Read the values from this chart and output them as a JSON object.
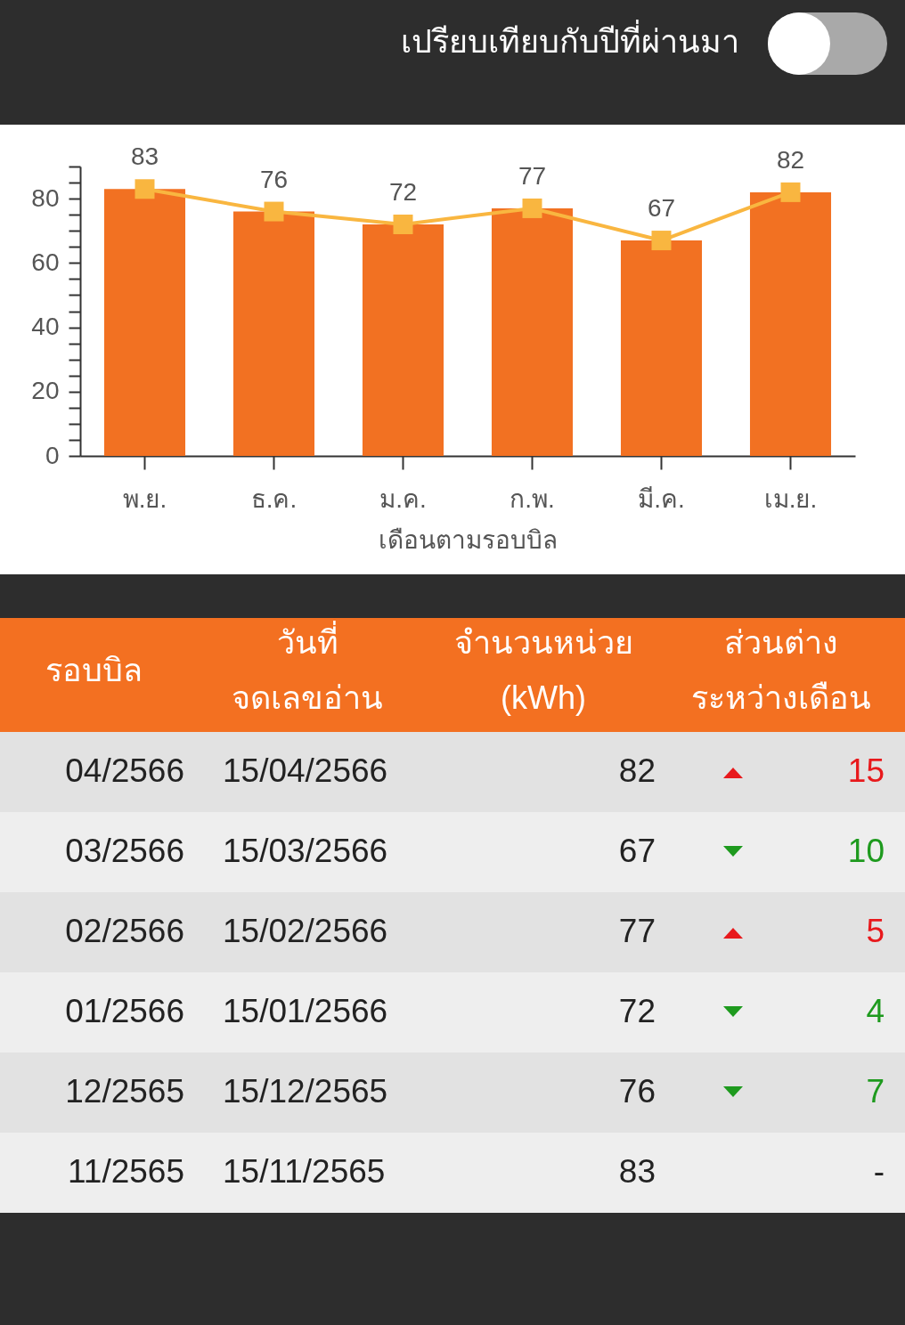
{
  "chart_data": [
    {
      "type": "bar",
      "annotations": [
        "เปรียบเทียบกับปีที่ผ่านมา"
      ],
      "xlabel": "เดือนตามรอบบิล",
      "categories": [
        "พ.ย.",
        "ธ.ค.",
        "ม.ค.",
        "ก.พ.",
        "มี.ค.",
        "เม.ย."
      ],
      "series": [
        {
          "type": "bar",
          "color": "#f27122",
          "values": [
            83,
            76,
            72,
            77,
            67,
            82
          ]
        },
        {
          "type": "line",
          "color": "#f9b640",
          "values": [
            83,
            76,
            72,
            77,
            67,
            82
          ],
          "value_labels": [
            "83",
            "76",
            "72",
            "77",
            "67",
            "82"
          ]
        }
      ],
      "ylim": [
        0,
        90
      ],
      "yticks": [
        0,
        {
          "value": 5,
          "label": null
        },
        {
          "value": 10,
          "label": null
        },
        {
          "value": 15,
          "label": null
        },
        20,
        {
          "value": 25,
          "label": null
        },
        {
          "value": 30,
          "label": null
        },
        {
          "value": 35,
          "label": null
        },
        40,
        {
          "value": 45,
          "label": null
        },
        {
          "value": 50,
          "label": null
        },
        {
          "value": 55,
          "label": null
        },
        60,
        {
          "value": 65,
          "label": null
        },
        {
          "value": 70,
          "label": null
        },
        {
          "value": 75,
          "label": null
        },
        80,
        {
          "value": 85,
          "label": null
        },
        {
          "value": 90,
          "label": null
        }
      ],
      "grid": false,
      "marker": "square"
    },
    {
      "type": "other",
      "categories": [
        "รอบบิล",
        "วันที่\nจดเลขอ่าน",
        "จำนวนหน่วย\n(kWh)",
        "ส่วนต่าง\nระหว่างเดือน"
      ],
      "cell_labels": [
        [
          "04/2566",
          "15/04/2566",
          "82",
          "15"
        ],
        [
          "03/2566",
          "15/03/2566",
          "67",
          "10"
        ],
        [
          "02/2566",
          "15/02/2566",
          "77",
          "5"
        ],
        [
          "01/2566",
          "15/01/2566",
          "72",
          "4"
        ],
        [
          "12/2565",
          "15/12/2565",
          "76",
          "7"
        ],
        [
          "11/2565",
          "15/11/2565",
          "83",
          "-"
        ]
      ]
    }
  ]
}
